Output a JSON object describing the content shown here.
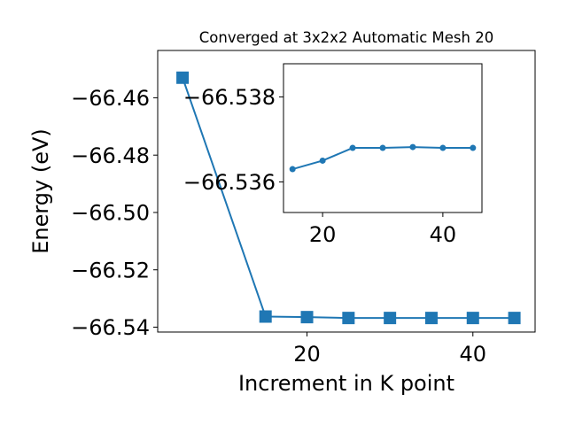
{
  "chart_data": [
    {
      "type": "line",
      "title": "Converged at 3x2x2 Automatic Mesh 20",
      "xlabel": "Increment in K point",
      "ylabel": "Energy (eV)",
      "xlim": [
        2.0,
        47.5
      ],
      "ylim": [
        -66.5417,
        -66.4435
      ],
      "xticks": [
        20,
        40
      ],
      "xtick_labels": [
        "20",
        "40"
      ],
      "yticks": [
        -66.46,
        -66.48,
        -66.5,
        -66.52,
        -66.54
      ],
      "ytick_labels": [
        "−66.46",
        "−66.48",
        "−66.50",
        "−66.52",
        "−66.54"
      ],
      "marker": "square",
      "color": "#1f77b4",
      "grid": false,
      "series": [
        {
          "x": [
            5,
            15,
            20,
            25,
            30,
            35,
            40,
            45
          ],
          "y": [
            -66.453,
            -66.5363,
            -66.5365,
            -66.5368,
            -66.5368,
            -66.5368,
            -66.5368,
            -66.5368
          ]
        }
      ]
    },
    {
      "type": "line",
      "role": "inset",
      "title": "",
      "xlabel": "",
      "ylabel": "",
      "xlim": [
        13.5,
        46.5
      ],
      "ylim": [
        -66.53528,
        -66.53878
      ],
      "xticks": [
        20,
        40
      ],
      "xtick_labels": [
        "20",
        "40"
      ],
      "yticks": [
        -66.536,
        -66.538
      ],
      "ytick_labels": [
        "−66.536",
        "−66.538"
      ],
      "marker": "circle",
      "color": "#1f77b4",
      "grid": false,
      "series": [
        {
          "x": [
            15,
            20,
            25,
            30,
            35,
            40,
            45
          ],
          "y": [
            -66.5363,
            -66.5365,
            -66.5368,
            -66.5368,
            -66.53682,
            -66.5368,
            -66.5368
          ]
        }
      ]
    }
  ]
}
